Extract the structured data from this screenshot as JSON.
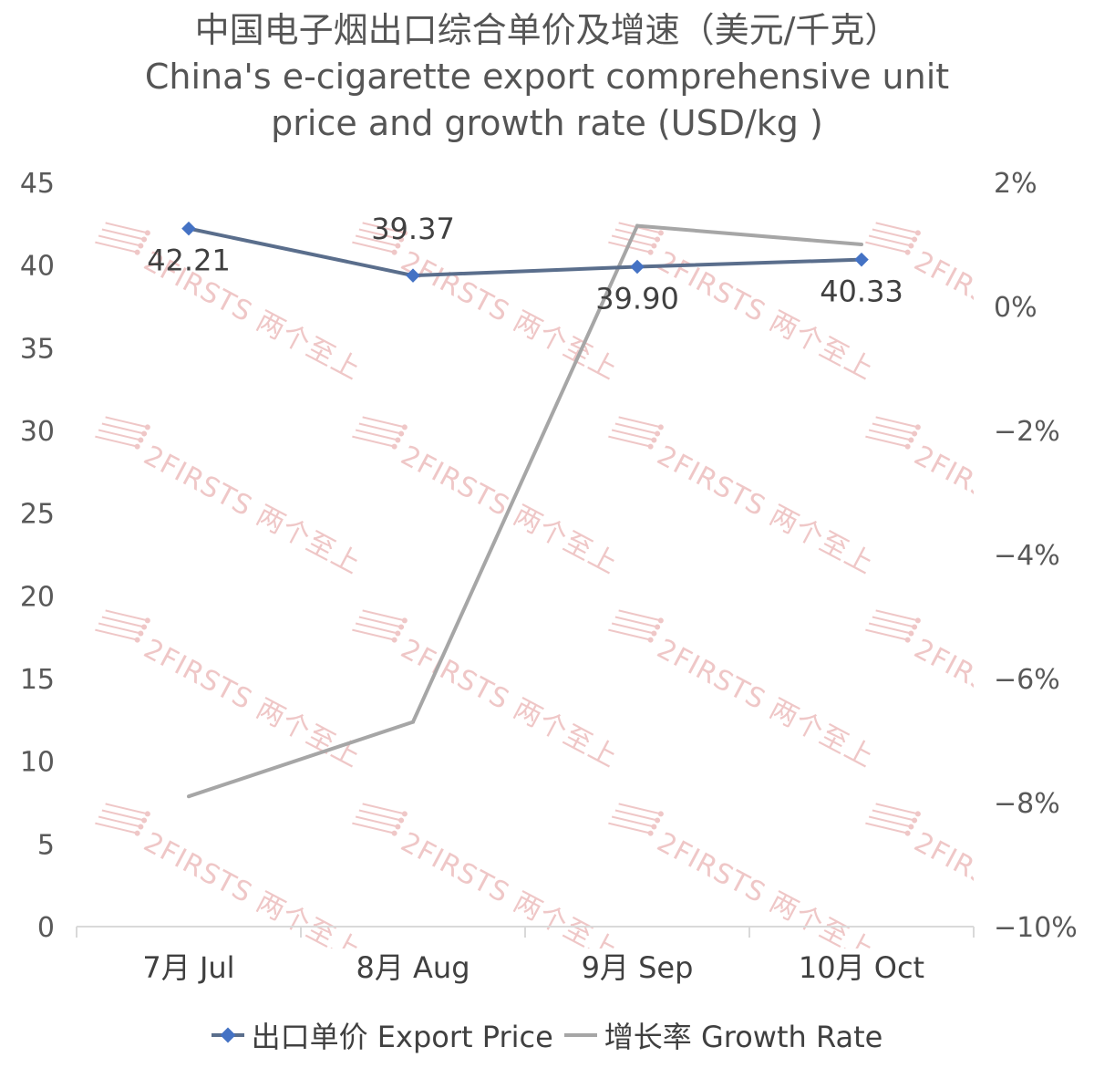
{
  "chart_data": {
    "type": "line",
    "title_zh": "中国电子烟出口综合单价及增速（美元/千克）",
    "title_en_line1": "China's e-cigarette export comprehensive unit",
    "title_en_line2": "price and growth rate (USD/kg )",
    "categories": [
      "7月 Jul",
      "8月 Aug",
      "9月 Sep",
      "10月 Oct"
    ],
    "series": [
      {
        "name": "出口单价 Export Price",
        "axis": "left",
        "color": "#5a6e8c",
        "marker_color": "#4472c4",
        "values": [
          42.21,
          39.37,
          39.9,
          40.33
        ],
        "data_labels": [
          "42.21",
          "39.37",
          "39.90",
          "40.33"
        ],
        "label_positions": [
          "below",
          "above",
          "below",
          "below"
        ]
      },
      {
        "name": "增长率 Growth Rate",
        "axis": "right",
        "color": "#a6a6a6",
        "values": [
          -7.9,
          -6.7,
          1.3,
          1.0
        ]
      }
    ],
    "y_left": {
      "min": 0,
      "max": 45,
      "ticks": [
        0,
        5,
        10,
        15,
        20,
        25,
        30,
        35,
        40,
        45
      ],
      "tick_labels": [
        "0",
        "5",
        "10",
        "15",
        "20",
        "25",
        "30",
        "35",
        "40",
        "45"
      ]
    },
    "y_right": {
      "min": -10,
      "max": 2,
      "ticks": [
        -10,
        -8,
        -6,
        -4,
        -2,
        0,
        2
      ],
      "tick_labels": [
        "−10%",
        "−8%",
        "−6%",
        "−4%",
        "−2%",
        "0%",
        "2%"
      ]
    },
    "grid": false,
    "legend_position": "bottom",
    "watermark": "2FIRSTS 两个至上"
  }
}
